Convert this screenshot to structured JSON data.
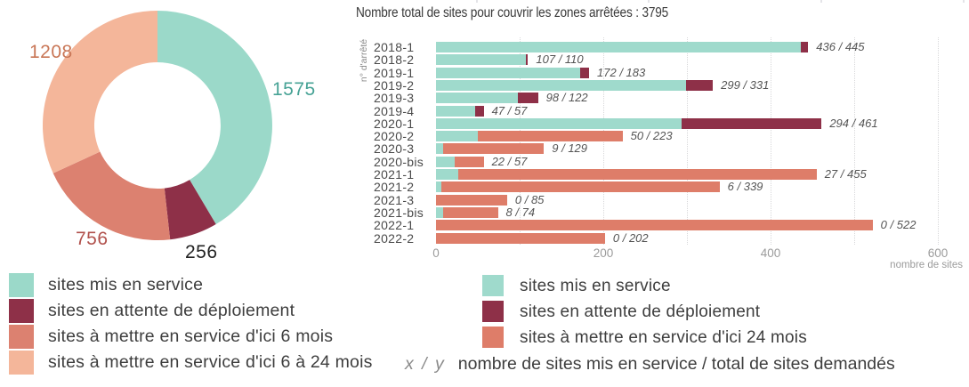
{
  "chart_data": [
    {
      "type": "pie",
      "subtype": "donut",
      "title": "",
      "total": 3795,
      "start_angle_deg": 0,
      "direction": "clockwise",
      "slices": [
        {
          "label": "sites mis en service",
          "value": 1575,
          "color": "#9bd9c9",
          "value_label_color": "#46a295"
        },
        {
          "label": "sites en attente de déploiement",
          "value": 256,
          "color": "#8e3048",
          "value_label_color": "#222222"
        },
        {
          "label": "sites à mettre en service d'ici 6 mois",
          "value": 756,
          "color": "#dc8170",
          "value_label_color": "#b1514c"
        },
        {
          "label": "sites à mettre en service d'ici 6 à 24 mois",
          "value": 1208,
          "color": "#f4b69a",
          "value_label_color": "#c97757"
        }
      ]
    },
    {
      "type": "bar",
      "orientation": "horizontal",
      "title": "Nombre total de sites pour couvrir les zones arrêtées : 3795",
      "xlabel": "nombre de sites",
      "ylabel": "n° d'arrêté",
      "xlim": [
        0,
        620
      ],
      "x_ticks": [
        0,
        200,
        400,
        600
      ],
      "gridlines_x": [
        100,
        200,
        300,
        400,
        500,
        600
      ],
      "grid": "dotted",
      "legend_position": "bottom",
      "series_colors": {
        "served": "#9fdacc",
        "waiting": "#8e3048",
        "due24": "#de7d69"
      },
      "rows": [
        {
          "label": "2018-1",
          "served": 436,
          "total": 445,
          "rest": "waiting",
          "value_label": "436 / 445"
        },
        {
          "label": "2018-2",
          "served": 107,
          "total": 110,
          "rest": "waiting",
          "value_label": "107 / 110"
        },
        {
          "label": "2019-1",
          "served": 172,
          "total": 183,
          "rest": "waiting",
          "value_label": "172 / 183"
        },
        {
          "label": "2019-2",
          "served": 299,
          "total": 331,
          "rest": "waiting",
          "value_label": "299 / 331"
        },
        {
          "label": "2019-3",
          "served": 98,
          "total": 122,
          "rest": "waiting",
          "value_label": "98 / 122"
        },
        {
          "label": "2019-4",
          "served": 47,
          "total": 57,
          "rest": "waiting",
          "value_label": "47 / 57"
        },
        {
          "label": "2020-1",
          "served": 294,
          "total": 461,
          "rest": "waiting",
          "value_label": "294 / 461"
        },
        {
          "label": "2020-2",
          "served": 50,
          "total": 223,
          "rest": "due24",
          "value_label": "50 / 223"
        },
        {
          "label": "2020-3",
          "served": 9,
          "total": 129,
          "rest": "due24",
          "value_label": "9 / 129"
        },
        {
          "label": "2020-bis",
          "served": 22,
          "total": 57,
          "rest": "due24",
          "value_label": "22 / 57"
        },
        {
          "label": "2021-1",
          "served": 27,
          "total": 455,
          "rest": "due24",
          "value_label": "27 / 455"
        },
        {
          "label": "2021-2",
          "served": 6,
          "total": 339,
          "rest": "due24",
          "value_label": "6 / 339"
        },
        {
          "label": "2021-3",
          "served": 0,
          "total": 85,
          "rest": "due24",
          "value_label": "0 / 85"
        },
        {
          "label": "2021-bis",
          "served": 8,
          "total": 74,
          "rest": "due24",
          "value_label": "8 / 74"
        },
        {
          "label": "2022-1",
          "served": 0,
          "total": 522,
          "rest": "due24",
          "value_label": "0 / 522"
        },
        {
          "label": "2022-2",
          "served": 0,
          "total": 202,
          "rest": "due24",
          "value_label": "0 / 202"
        }
      ]
    }
  ],
  "left_legend": [
    {
      "color": "#9bd9c9",
      "label": "sites mis en service"
    },
    {
      "color": "#8e3048",
      "label": "sites en attente de déploiement"
    },
    {
      "color": "#dc8170",
      "label": "sites à mettre en service d'ici 6 mois"
    },
    {
      "color": "#f4b69a",
      "label": "sites à mettre en service d'ici 6 à 24 mois"
    }
  ],
  "right_legend": [
    {
      "color": "#9fdacc",
      "label": "sites mis en service"
    },
    {
      "color": "#8e3048",
      "label": "sites en attente de déploiement"
    },
    {
      "color": "#de7d69",
      "label": "sites à mettre en service d'ici 24 mois"
    }
  ],
  "footnote": {
    "prefix": "x / y",
    "text": "nombre de sites mis en service / total de sites demandés"
  }
}
